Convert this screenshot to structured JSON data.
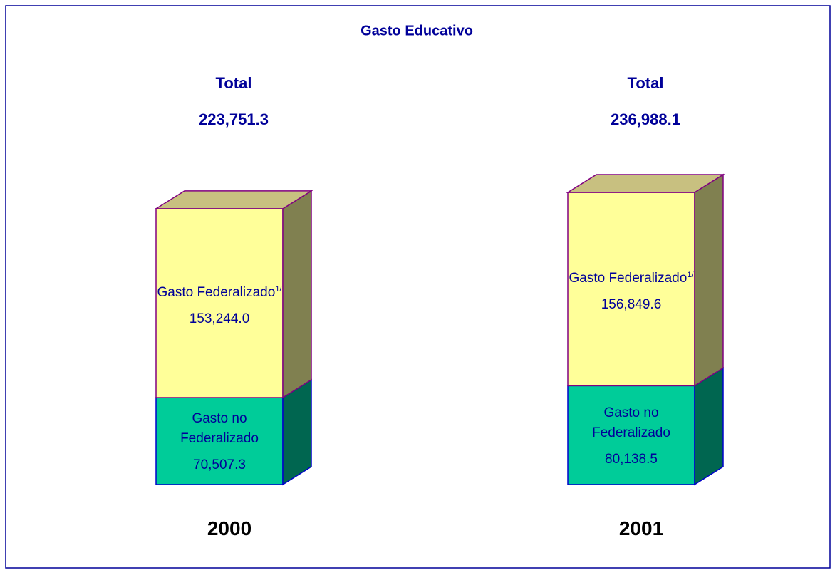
{
  "chart_data": {
    "type": "stacked-bar-3d",
    "title": "Gasto Educativo",
    "total_title": "Total",
    "categories": [
      "2000",
      "2001"
    ],
    "totals": [
      223751.3,
      236988.1
    ],
    "total_labels": [
      "223,751.3",
      "236,988.1"
    ],
    "series": [
      {
        "name": "Gasto no Federalizado",
        "color": "#00cc99",
        "side_color": "#006650",
        "outline": "#0000cc",
        "values": [
          70507.3,
          80138.5
        ],
        "value_labels": [
          "70,507.3",
          "80,138.5"
        ]
      },
      {
        "name": "Gasto Federalizado",
        "note": "1/",
        "color": "#ffff99",
        "side_color": "#808050",
        "top_color": "#c8c080",
        "outline": "#800080",
        "values": [
          153244.0,
          156849.6
        ],
        "value_labels": [
          "153,244.0",
          "156,849.6"
        ]
      }
    ]
  }
}
